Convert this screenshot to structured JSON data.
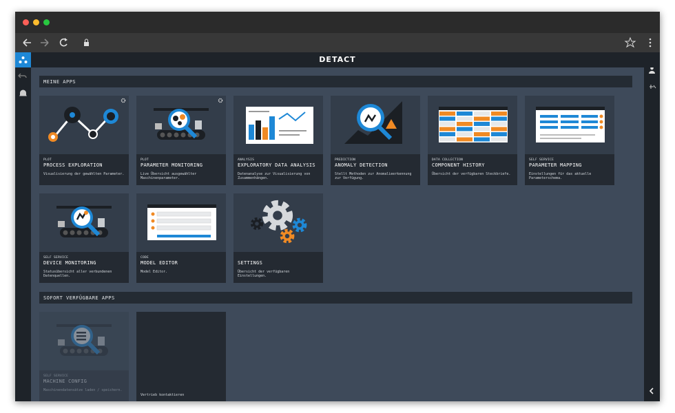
{
  "header": {
    "logo": "DETACT"
  },
  "sections": [
    {
      "title": "MEINE APPS",
      "apps": [
        {
          "category": "PLOT",
          "name": "PROCESS EXPLORATION",
          "description": "Visualisierung der gewählten Parameter."
        },
        {
          "category": "PLOT",
          "name": "PARAMETER MONITORING",
          "description": "Live Übersicht ausgewählter Maschinenparameter."
        },
        {
          "category": "ANALYSIS",
          "name": "EXPLORATORY DATA ANALYSIS",
          "description": "Datenanalyse zur Visualisierung von Zusammenhängen."
        },
        {
          "category": "PREDICTION",
          "name": "ANOMALY DETECTION",
          "description": "Stellt Methoden zur Anomalieerkennung zur Verfügung."
        },
        {
          "category": "DATA COLLECTION",
          "name": "COMPONENT HISTORY",
          "description": "Übersicht der verfügbaren Steckbriefe."
        },
        {
          "category": "SELF SERVICE",
          "name": "PARAMETER MAPPING",
          "description": "Einstellungen für das aktuelle Parameterschema."
        },
        {
          "category": "SELF SERVICE",
          "name": "DEVICE MONITORING",
          "description": "Statusübersicht aller verbundenen Datenquellen."
        },
        {
          "category": "CODE",
          "name": "MODEL EDITOR",
          "description": "Model Editor."
        },
        {
          "name": "SETTINGS",
          "description": "Übersicht der verfügbaren Einstellungen."
        }
      ]
    },
    {
      "title": "SOFORT VERFÜGBARE APPS",
      "apps": [
        {
          "category": "SELF SERVICE",
          "name": "MACHINE CONFIG",
          "description": "Maschinendatensätze laden / speichern."
        },
        {
          "description": "Vertrieb kontaktieren"
        }
      ]
    }
  ]
}
